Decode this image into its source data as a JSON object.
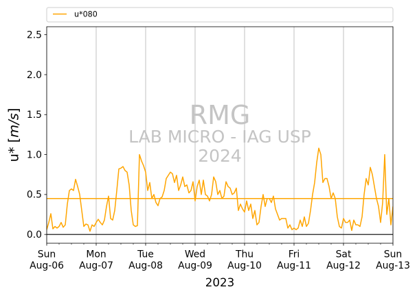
{
  "chart_data": {
    "type": "line",
    "xlabel": "2023",
    "ylabel": "u* [m/s]",
    "xlim": [
      "2023-08-06T00:00",
      "2023-08-13T00:00"
    ],
    "ylim": [
      -0.11,
      2.6
    ],
    "grid": {
      "x": true,
      "y": false
    },
    "legend_position": "top",
    "x_ticks": [
      {
        "value": "2023-08-06T00:00",
        "weekday": "Sun",
        "date": "Aug-06"
      },
      {
        "value": "2023-08-07T00:00",
        "weekday": "Mon",
        "date": "Aug-07"
      },
      {
        "value": "2023-08-08T00:00",
        "weekday": "Tue",
        "date": "Aug-08"
      },
      {
        "value": "2023-08-09T00:00",
        "weekday": "Wed",
        "date": "Aug-09"
      },
      {
        "value": "2023-08-10T00:00",
        "weekday": "Thu",
        "date": "Aug-10"
      },
      {
        "value": "2023-08-11T00:00",
        "weekday": "Fri",
        "date": "Aug-11"
      },
      {
        "value": "2023-08-12T00:00",
        "weekday": "Sat",
        "date": "Aug-12"
      },
      {
        "value": "2023-08-13T00:00",
        "weekday": "Sun",
        "date": "Aug-13"
      }
    ],
    "y_ticks": [
      {
        "value": 0.0,
        "label": "0.0"
      },
      {
        "value": 0.5,
        "label": "0.5"
      },
      {
        "value": 1.0,
        "label": "1.0"
      },
      {
        "value": 1.5,
        "label": "1.5"
      },
      {
        "value": 2.0,
        "label": "2.0"
      },
      {
        "value": 2.5,
        "label": "2.5"
      }
    ],
    "series": [
      {
        "name": "u*080",
        "color": "#FFA500",
        "x": [
          "2023-08-06T00:00",
          "2023-08-06T01:00",
          "2023-08-06T02:00",
          "2023-08-06T03:00",
          "2023-08-06T04:00",
          "2023-08-06T05:00",
          "2023-08-06T06:00",
          "2023-08-06T07:00",
          "2023-08-06T08:00",
          "2023-08-06T09:00",
          "2023-08-06T10:00",
          "2023-08-06T11:00",
          "2023-08-06T12:00",
          "2023-08-06T13:00",
          "2023-08-06T14:00",
          "2023-08-06T15:00",
          "2023-08-06T16:00",
          "2023-08-06T17:00",
          "2023-08-06T18:00",
          "2023-08-06T19:00",
          "2023-08-06T20:00",
          "2023-08-06T21:00",
          "2023-08-06T22:00",
          "2023-08-06T23:00",
          "2023-08-07T00:00",
          "2023-08-07T01:00",
          "2023-08-07T02:00",
          "2023-08-07T03:00",
          "2023-08-07T04:00",
          "2023-08-07T05:00",
          "2023-08-07T06:00",
          "2023-08-07T07:00",
          "2023-08-07T08:00",
          "2023-08-07T09:00",
          "2023-08-07T10:00",
          "2023-08-07T11:00",
          "2023-08-07T12:00",
          "2023-08-07T13:00",
          "2023-08-07T14:00",
          "2023-08-07T15:00",
          "2023-08-07T16:00",
          "2023-08-07T17:00",
          "2023-08-07T18:00",
          "2023-08-07T19:00",
          "2023-08-07T20:00",
          "2023-08-07T21:00",
          "2023-08-07T22:00",
          "2023-08-07T23:00",
          "2023-08-08T00:00",
          "2023-08-08T01:00",
          "2023-08-08T02:00",
          "2023-08-08T03:00",
          "2023-08-08T04:00",
          "2023-08-08T05:00",
          "2023-08-08T06:00",
          "2023-08-08T07:00",
          "2023-08-08T08:00",
          "2023-08-08T09:00",
          "2023-08-08T10:00",
          "2023-08-08T11:00",
          "2023-08-08T12:00",
          "2023-08-08T13:00",
          "2023-08-08T14:00",
          "2023-08-08T15:00",
          "2023-08-08T16:00",
          "2023-08-08T17:00",
          "2023-08-08T18:00",
          "2023-08-08T19:00",
          "2023-08-08T20:00",
          "2023-08-08T21:00",
          "2023-08-08T22:00",
          "2023-08-08T23:00",
          "2023-08-09T00:00",
          "2023-08-09T01:00",
          "2023-08-09T02:00",
          "2023-08-09T03:00",
          "2023-08-09T04:00",
          "2023-08-09T05:00",
          "2023-08-09T06:00",
          "2023-08-09T07:00",
          "2023-08-09T08:00",
          "2023-08-09T09:00",
          "2023-08-09T10:00",
          "2023-08-09T11:00",
          "2023-08-09T12:00",
          "2023-08-09T13:00",
          "2023-08-09T14:00",
          "2023-08-09T15:00",
          "2023-08-09T16:00",
          "2023-08-09T17:00",
          "2023-08-09T18:00",
          "2023-08-09T19:00",
          "2023-08-09T20:00",
          "2023-08-09T21:00",
          "2023-08-09T22:00",
          "2023-08-09T23:00",
          "2023-08-10T00:00",
          "2023-08-10T01:00",
          "2023-08-10T02:00",
          "2023-08-10T03:00",
          "2023-08-10T04:00",
          "2023-08-10T05:00",
          "2023-08-10T06:00",
          "2023-08-10T07:00",
          "2023-08-10T08:00",
          "2023-08-10T09:00",
          "2023-08-10T10:00",
          "2023-08-10T11:00",
          "2023-08-10T12:00",
          "2023-08-10T13:00",
          "2023-08-10T14:00",
          "2023-08-10T15:00",
          "2023-08-10T16:00",
          "2023-08-10T17:00",
          "2023-08-10T18:00",
          "2023-08-10T19:00",
          "2023-08-10T20:00",
          "2023-08-10T21:00",
          "2023-08-10T22:00",
          "2023-08-10T23:00",
          "2023-08-11T00:00",
          "2023-08-11T01:00",
          "2023-08-11T02:00",
          "2023-08-11T03:00",
          "2023-08-11T04:00",
          "2023-08-11T05:00",
          "2023-08-11T06:00",
          "2023-08-11T07:00",
          "2023-08-11T08:00",
          "2023-08-11T09:00",
          "2023-08-11T10:00",
          "2023-08-11T11:00",
          "2023-08-11T12:00",
          "2023-08-11T13:00",
          "2023-08-11T14:00",
          "2023-08-11T15:00",
          "2023-08-11T16:00",
          "2023-08-11T17:00",
          "2023-08-11T18:00",
          "2023-08-11T19:00",
          "2023-08-11T20:00",
          "2023-08-11T21:00",
          "2023-08-11T22:00",
          "2023-08-11T23:00",
          "2023-08-12T00:00",
          "2023-08-12T01:00",
          "2023-08-12T02:00",
          "2023-08-12T03:00",
          "2023-08-12T04:00",
          "2023-08-12T05:00",
          "2023-08-12T06:00",
          "2023-08-12T07:00",
          "2023-08-12T08:00",
          "2023-08-12T09:00",
          "2023-08-12T10:00",
          "2023-08-12T11:00",
          "2023-08-12T12:00",
          "2023-08-12T13:00",
          "2023-08-12T14:00",
          "2023-08-12T15:00",
          "2023-08-12T16:00",
          "2023-08-12T17:00",
          "2023-08-12T18:00",
          "2023-08-12T19:00",
          "2023-08-12T20:00",
          "2023-08-12T21:00",
          "2023-08-12T22:00",
          "2023-08-12T23:00",
          "2023-08-13T00:00"
        ],
        "y": [
          0.06,
          0.15,
          0.26,
          0.07,
          0.1,
          0.08,
          0.1,
          0.15,
          0.09,
          0.12,
          0.38,
          0.55,
          0.57,
          0.55,
          0.69,
          0.6,
          0.5,
          0.3,
          0.1,
          0.13,
          0.12,
          0.04,
          0.12,
          0.1,
          0.15,
          0.19,
          0.15,
          0.12,
          0.18,
          0.35,
          0.48,
          0.2,
          0.18,
          0.3,
          0.55,
          0.82,
          0.83,
          0.85,
          0.8,
          0.78,
          0.62,
          0.3,
          0.12,
          0.1,
          0.11,
          1.0,
          0.92,
          0.86,
          0.78,
          0.55,
          0.65,
          0.45,
          0.5,
          0.4,
          0.36,
          0.45,
          0.47,
          0.55,
          0.7,
          0.74,
          0.78,
          0.76,
          0.65,
          0.74,
          0.55,
          0.62,
          0.72,
          0.6,
          0.62,
          0.52,
          0.55,
          0.66,
          0.42,
          0.6,
          0.68,
          0.5,
          0.68,
          0.5,
          0.48,
          0.42,
          0.5,
          0.72,
          0.66,
          0.5,
          0.55,
          0.45,
          0.48,
          0.66,
          0.6,
          0.58,
          0.5,
          0.52,
          0.58,
          0.3,
          0.38,
          0.32,
          0.28,
          0.42,
          0.3,
          0.38,
          0.2,
          0.3,
          0.12,
          0.15,
          0.35,
          0.5,
          0.35,
          0.45,
          0.45,
          0.4,
          0.48,
          0.32,
          0.25,
          0.18,
          0.2,
          0.2,
          0.2,
          0.08,
          0.12,
          0.06,
          0.08,
          0.06,
          0.08,
          0.18,
          0.1,
          0.22,
          0.1,
          0.14,
          0.3,
          0.5,
          0.65,
          0.9,
          1.08,
          1.0,
          0.65,
          0.7,
          0.7,
          0.6,
          0.45,
          0.52,
          0.45,
          0.22,
          0.1,
          0.08,
          0.2,
          0.15,
          0.15,
          0.18,
          0.05,
          0.18,
          0.12,
          0.12,
          0.1,
          0.22,
          0.5,
          0.7,
          0.62,
          0.84,
          0.75,
          0.6,
          0.45,
          0.35,
          0.15,
          0.4,
          1.0,
          0.25,
          0.45,
          0.12,
          0.35
        ]
      }
    ],
    "reference_lines": [
      {
        "y": 0.45,
        "color": "#FFA500"
      },
      {
        "y": 0.0,
        "color": "#000000"
      }
    ],
    "watermark": {
      "lines": [
        "RMG",
        "LAB MICRO - IAG USP",
        "2024"
      ],
      "color": "#c4c4c4"
    }
  }
}
